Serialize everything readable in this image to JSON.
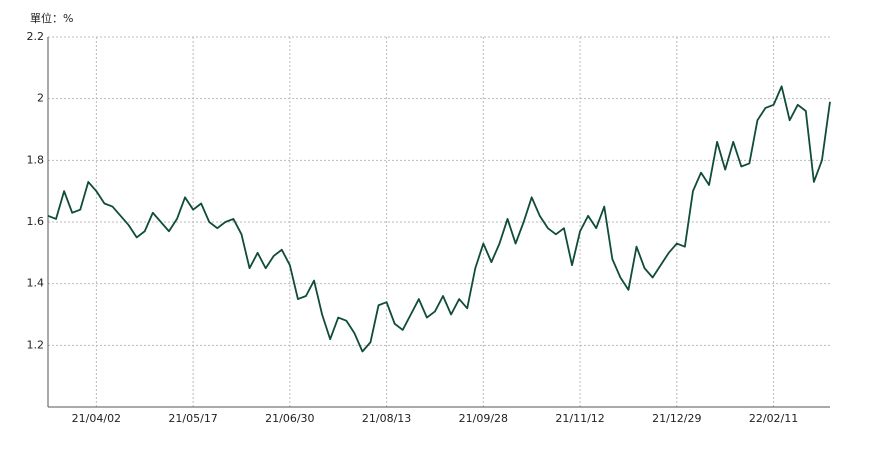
{
  "chart_data": {
    "type": "line",
    "unit_label": "單位：%",
    "categories": [
      null,
      null,
      null,
      null,
      null,
      null,
      "21/04/02",
      null,
      null,
      null,
      null,
      null,
      null,
      null,
      null,
      null,
      null,
      null,
      "21/05/17",
      null,
      null,
      null,
      null,
      null,
      null,
      null,
      null,
      null,
      null,
      null,
      "21/06/30",
      null,
      null,
      null,
      null,
      null,
      null,
      null,
      null,
      null,
      null,
      null,
      "21/08/13",
      null,
      null,
      null,
      null,
      null,
      null,
      null,
      null,
      null,
      null,
      null,
      "21/09/28",
      null,
      null,
      null,
      null,
      null,
      null,
      null,
      null,
      null,
      null,
      null,
      "21/11/12",
      null,
      null,
      null,
      null,
      null,
      null,
      null,
      null,
      null,
      null,
      null,
      "21/12/29",
      null,
      null,
      null,
      null,
      null,
      null,
      null,
      null,
      null,
      null,
      null,
      "22/02/11",
      null,
      null,
      null,
      null,
      null,
      null,
      null
    ],
    "values": [
      1.62,
      1.61,
      1.7,
      1.63,
      1.64,
      1.73,
      1.7,
      1.66,
      1.65,
      1.62,
      1.59,
      1.55,
      1.57,
      1.63,
      1.6,
      1.57,
      1.61,
      1.68,
      1.64,
      1.66,
      1.6,
      1.58,
      1.6,
      1.61,
      1.56,
      1.45,
      1.5,
      1.45,
      1.49,
      1.51,
      1.46,
      1.35,
      1.36,
      1.41,
      1.3,
      1.22,
      1.29,
      1.28,
      1.24,
      1.18,
      1.21,
      1.33,
      1.34,
      1.27,
      1.25,
      1.3,
      1.35,
      1.29,
      1.31,
      1.36,
      1.3,
      1.35,
      1.32,
      1.45,
      1.53,
      1.47,
      1.53,
      1.61,
      1.53,
      1.6,
      1.68,
      1.62,
      1.58,
      1.56,
      1.58,
      1.46,
      1.57,
      1.62,
      1.58,
      1.65,
      1.48,
      1.42,
      1.38,
      1.52,
      1.45,
      1.42,
      1.46,
      1.5,
      1.53,
      1.52,
      1.7,
      1.76,
      1.72,
      1.86,
      1.77,
      1.86,
      1.78,
      1.79,
      1.93,
      1.97,
      1.98,
      2.04,
      1.93,
      1.98,
      1.96,
      1.73,
      1.8,
      1.99
    ],
    "color": "#0f4d36",
    "ylim": [
      1.0,
      2.2
    ],
    "yticks": [
      1.2,
      1.4,
      1.6,
      1.8,
      2,
      2.2
    ],
    "grid": true
  }
}
